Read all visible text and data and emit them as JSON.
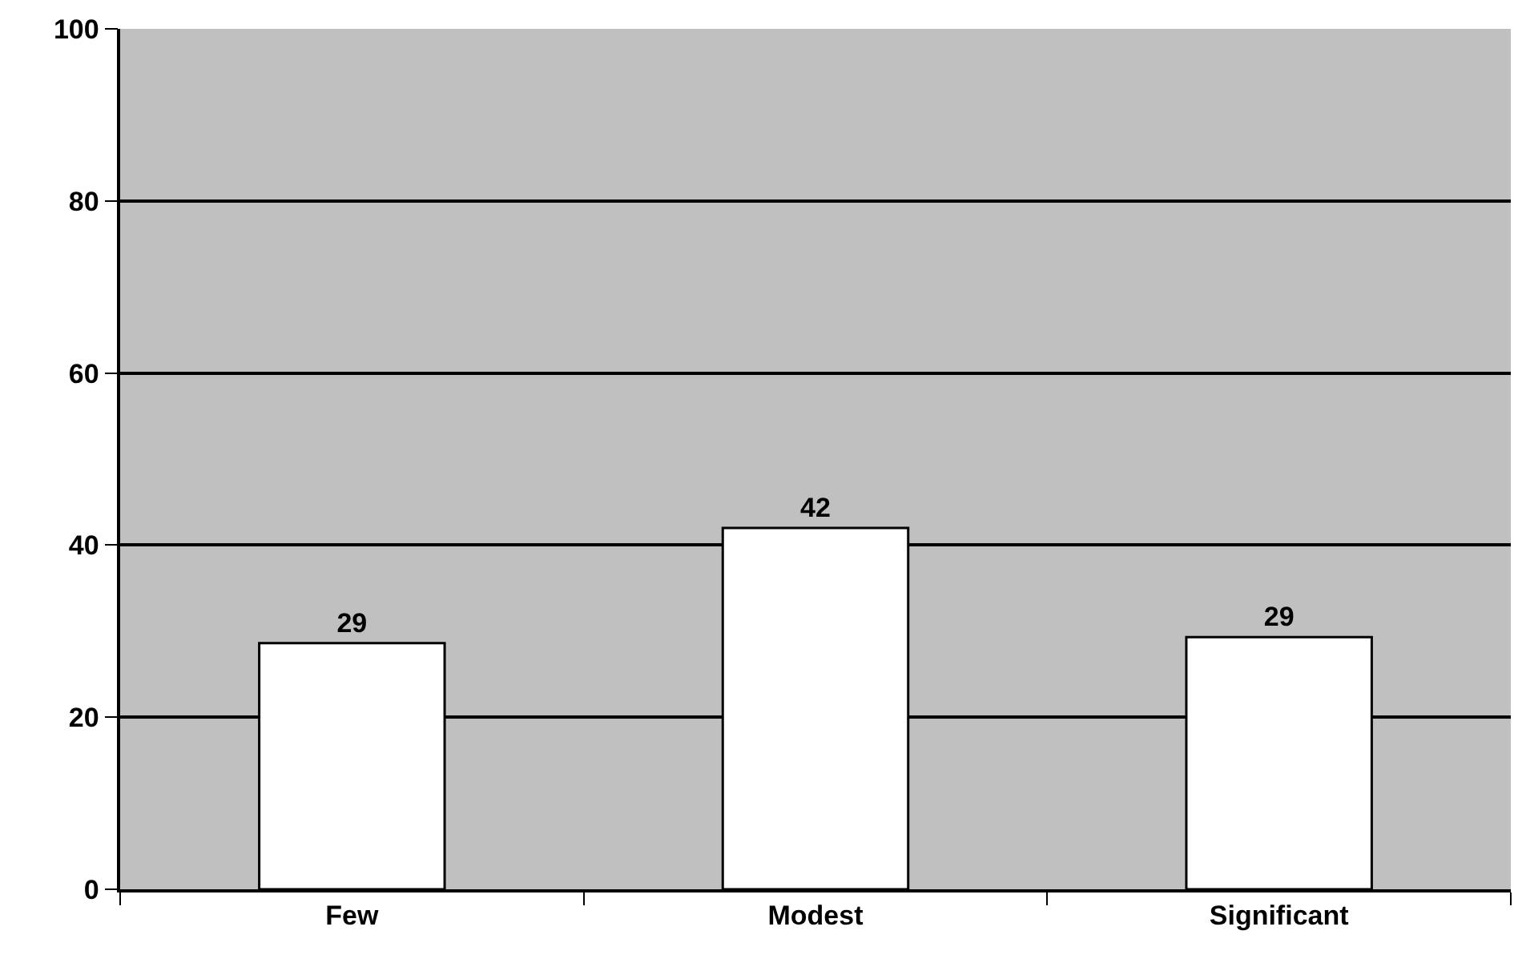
{
  "chart_data": {
    "type": "bar",
    "categories": [
      "Few",
      "Modest",
      "Significant"
    ],
    "values": [
      28.6,
      42,
      29.3
    ],
    "value_labels": [
      "29",
      "42",
      "29"
    ],
    "color": "#ffffff",
    "ylim": [
      0,
      100
    ],
    "yticks": [
      0,
      20,
      40,
      60,
      80,
      100
    ],
    "grid": "y",
    "legend": false
  }
}
